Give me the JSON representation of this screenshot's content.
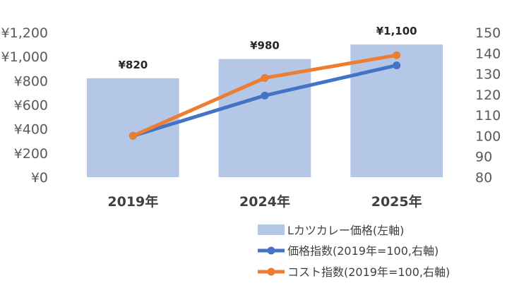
{
  "chart_data": {
    "type": "bar",
    "categories": [
      "2019年",
      "2024年",
      "2025年"
    ],
    "left_axis": {
      "ticks": [
        "¥0",
        "¥200",
        "¥400",
        "¥600",
        "¥800",
        "¥1,000",
        "¥1,200"
      ],
      "ylim": [
        0,
        1200
      ]
    },
    "right_axis": {
      "ticks": [
        "80",
        "90",
        "100",
        "110",
        "120",
        "130",
        "140",
        "150"
      ],
      "ylim": [
        80,
        150
      ]
    },
    "bar_series": {
      "name": "Lカツカレー価格(左軸)",
      "values": [
        820,
        980,
        1100
      ],
      "data_labels": [
        "¥820",
        "¥980",
        "¥1,100"
      ],
      "color": "#b4c7e7"
    },
    "line_series": [
      {
        "name": "価格指数(2019年=100,右軸)",
        "values": [
          100,
          119.5,
          134.1
        ],
        "color": "#4472c4"
      },
      {
        "name": "コスト指数(2019年=100,右軸)",
        "values": [
          100,
          128,
          139
        ],
        "color": "#ed7d31"
      }
    ],
    "grid": false,
    "legend_position": "bottom-right"
  }
}
